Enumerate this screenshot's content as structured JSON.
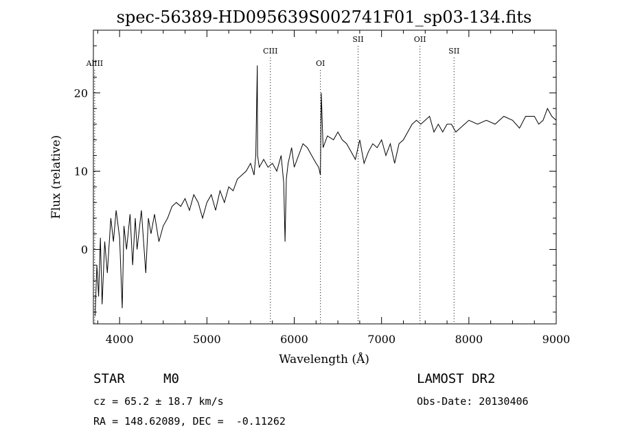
{
  "chart_data": {
    "type": "line",
    "title": "spec-56389-HD095639S002741F01_sp03-134.fits",
    "xlabel": "Wavelength (Å)",
    "ylabel": "Flux (relative)",
    "xlim": [
      3700,
      9000
    ],
    "ylim": [
      -9.5,
      28
    ],
    "x_ticks": [
      4000,
      5000,
      6000,
      7000,
      8000,
      9000
    ],
    "x_tick_labels": [
      "4000",
      "5000",
      "6000",
      "7000",
      "8000",
      "9000"
    ],
    "y_ticks": [
      0,
      10,
      20
    ],
    "y_tick_labels": [
      "0",
      "10",
      "20"
    ],
    "grid": false,
    "series": [
      {
        "color": "#000000",
        "x": [
          3720,
          3740,
          3760,
          3780,
          3800,
          3830,
          3860,
          3900,
          3930,
          3960,
          4000,
          4030,
          4050,
          4080,
          4120,
          4150,
          4180,
          4200,
          4250,
          4300,
          4330,
          4360,
          4400,
          4450,
          4500,
          4550,
          4600,
          4650,
          4700,
          4750,
          4800,
          4850,
          4900,
          4950,
          5000,
          5050,
          5100,
          5150,
          5200,
          5250,
          5300,
          5350,
          5400,
          5450,
          5500,
          5540,
          5560,
          5577,
          5580,
          5600,
          5650,
          5700,
          5750,
          5800,
          5850,
          5880,
          5895,
          5910,
          5930,
          5970,
          6000,
          6050,
          6100,
          6150,
          6200,
          6250,
          6280,
          6300,
          6310,
          6330,
          6380,
          6450,
          6500,
          6550,
          6600,
          6650,
          6700,
          6750,
          6800,
          6850,
          6900,
          6950,
          7000,
          7050,
          7100,
          7150,
          7200,
          7250,
          7300,
          7350,
          7400,
          7450,
          7500,
          7550,
          7600,
          7650,
          7700,
          7750,
          7800,
          7850,
          7900,
          7950,
          8000,
          8100,
          8200,
          8300,
          8400,
          8500,
          8580,
          8650,
          8750,
          8800,
          8850,
          8900,
          8950,
          9000
        ],
        "y": [
          -8.5,
          -2,
          -6,
          1.5,
          -7,
          1,
          -3,
          4,
          1,
          5,
          1.5,
          -7.5,
          3,
          0,
          4.5,
          -2,
          4,
          0,
          5,
          -3,
          4,
          2,
          4.5,
          1,
          3,
          4,
          5.5,
          6,
          5.5,
          6.5,
          5,
          7,
          6,
          4,
          6,
          7,
          5,
          7.5,
          6,
          8,
          7.5,
          9,
          9.5,
          10,
          11,
          9.5,
          12,
          23.5,
          12,
          10.5,
          11.5,
          10.5,
          11,
          10,
          12,
          8.5,
          1,
          9,
          11,
          13,
          10.5,
          12,
          13.5,
          13,
          12,
          11,
          10.5,
          9.5,
          20,
          13,
          14.5,
          14,
          15,
          14,
          13.5,
          12.5,
          11.5,
          14,
          11,
          12.5,
          13.5,
          13,
          14,
          12,
          13.5,
          11,
          13.5,
          14,
          15,
          16,
          16.5,
          16,
          16.5,
          17,
          15,
          16,
          15,
          16,
          16,
          15,
          15.5,
          16,
          16.5,
          16,
          16.5,
          16,
          17,
          16.5,
          15.5,
          17,
          17,
          16,
          16.5,
          18,
          17,
          16.5
        ]
      }
    ],
    "lines": [
      {
        "label": "AlIII",
        "x": 3715
      },
      {
        "label": "CIII",
        "x": 5727
      },
      {
        "label": "OI",
        "x": 6300
      },
      {
        "label": "SII",
        "x": 6731
      },
      {
        "label": "OII",
        "x": 7440
      },
      {
        "label": "SII",
        "x": 7830
      }
    ]
  },
  "info": {
    "object_class": "STAR",
    "subclass": "M0",
    "survey": "LAMOST DR2",
    "redshift_line": "cz = 65.2 ± 18.7 km/s",
    "obs_date_line": "Obs-Date: 20130406",
    "coords_line": "RA = 148.62089, DEC =  -0.11262"
  }
}
